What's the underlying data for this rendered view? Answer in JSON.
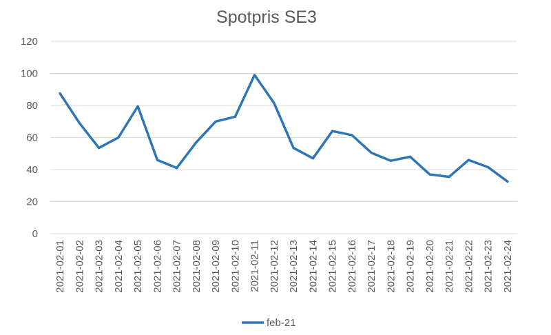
{
  "chart_data": {
    "type": "line",
    "title": "Spotpris SE3",
    "xlabel": "",
    "ylabel": "",
    "ylim": [
      0,
      120
    ],
    "yticks": [
      0,
      20,
      40,
      60,
      80,
      100,
      120
    ],
    "grid": true,
    "legend_position": "bottom",
    "categories": [
      "2021-02-01",
      "2021-02-02",
      "2021-02-03",
      "2021-02-04",
      "2021-02-05",
      "2021-02-06",
      "2021-02-07",
      "2021-02-08",
      "2021-02-09",
      "2021-02-10",
      "2021-02-11",
      "2021-02-12",
      "2021-02-13",
      "2021-02-14",
      "2021-02-15",
      "2021-02-16",
      "2021-02-17",
      "2021-02-18",
      "2021-02-19",
      "2021-02-20",
      "2021-02-21",
      "2021-02-22",
      "2021-02-23",
      "2021-02-24"
    ],
    "series": [
      {
        "name": "feb-21",
        "color": "#2e75b6",
        "values": [
          87.5,
          69,
          53.5,
          60,
          79.5,
          46,
          41,
          57,
          70,
          73,
          99,
          81.5,
          53.5,
          47,
          64,
          61.5,
          50.5,
          45.5,
          48,
          37,
          35.5,
          46,
          41.5,
          32.5
        ]
      }
    ]
  }
}
